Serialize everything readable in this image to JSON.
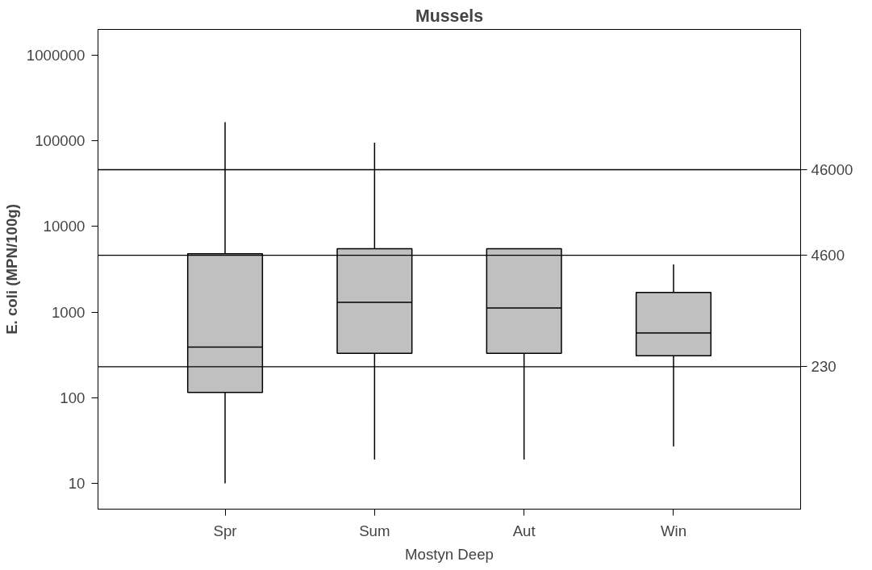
{
  "chart_data": {
    "type": "box",
    "title": "Mussels",
    "xlabel": "Mostyn Deep",
    "ylabel": "E. coli (MPN/100g)",
    "categories": [
      "Spr",
      "Sum",
      "Aut",
      "Win"
    ],
    "color": "#c0c0c0",
    "log": true,
    "grid": false,
    "ylim": [
      5,
      2000000
    ],
    "yticks": [
      10,
      100,
      1000,
      10000,
      100000,
      1000000
    ],
    "boxes": [
      {
        "low": 10,
        "q1": 115,
        "median": 390,
        "q3": 4800,
        "high": 165000
      },
      {
        "low": 19,
        "q1": 330,
        "median": 1300,
        "q3": 5500,
        "high": 95000
      },
      {
        "low": 19,
        "q1": 330,
        "median": 1120,
        "q3": 5500,
        "high": 5500
      },
      {
        "low": 27,
        "q1": 310,
        "median": 570,
        "q3": 1700,
        "high": 3600
      }
    ],
    "ref_lines": [
      {
        "axis": "y",
        "value": 46000,
        "label": "46000"
      },
      {
        "axis": "y",
        "value": 4600,
        "label": "4600"
      },
      {
        "axis": "y",
        "value": 230,
        "label": "230"
      }
    ]
  }
}
